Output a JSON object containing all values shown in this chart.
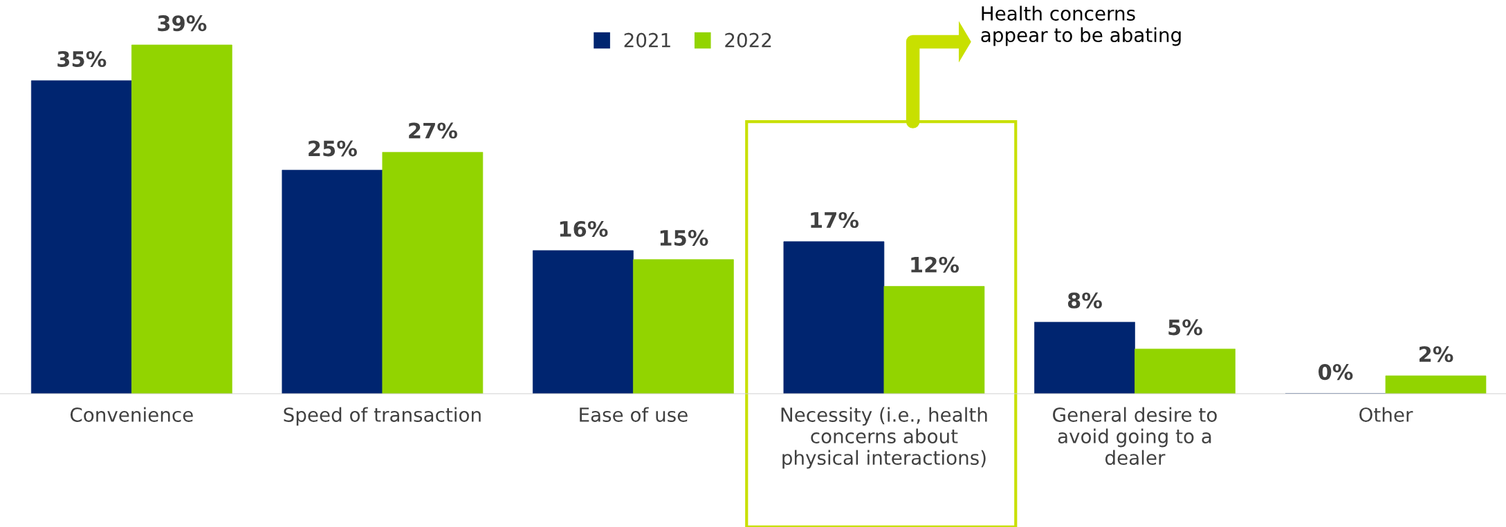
{
  "chart_data": {
    "type": "bar",
    "categories": [
      "Convenience",
      "Speed of transaction",
      "Ease of use",
      "Necessity (i.e., health\nconcerns about\nphysical interactions)",
      "General desire to\navoid going to a\ndealer",
      "Other"
    ],
    "series": [
      {
        "name": "2021",
        "color": "#002570",
        "values": [
          35,
          25,
          16,
          17,
          8,
          0
        ],
        "value_labels": [
          "35%",
          "25%",
          "16%",
          "17%",
          "8%",
          "0%"
        ]
      },
      {
        "name": "2022",
        "color": "#92d400",
        "values": [
          39,
          27,
          15,
          12,
          5,
          2
        ],
        "value_labels": [
          "39%",
          "27%",
          "15%",
          "12%",
          "5%",
          "2%"
        ]
      }
    ],
    "legend": "top",
    "grid": false,
    "tick_labels": "x",
    "annotations": [
      "Health concerns\nappear to be abating"
    ]
  }
}
